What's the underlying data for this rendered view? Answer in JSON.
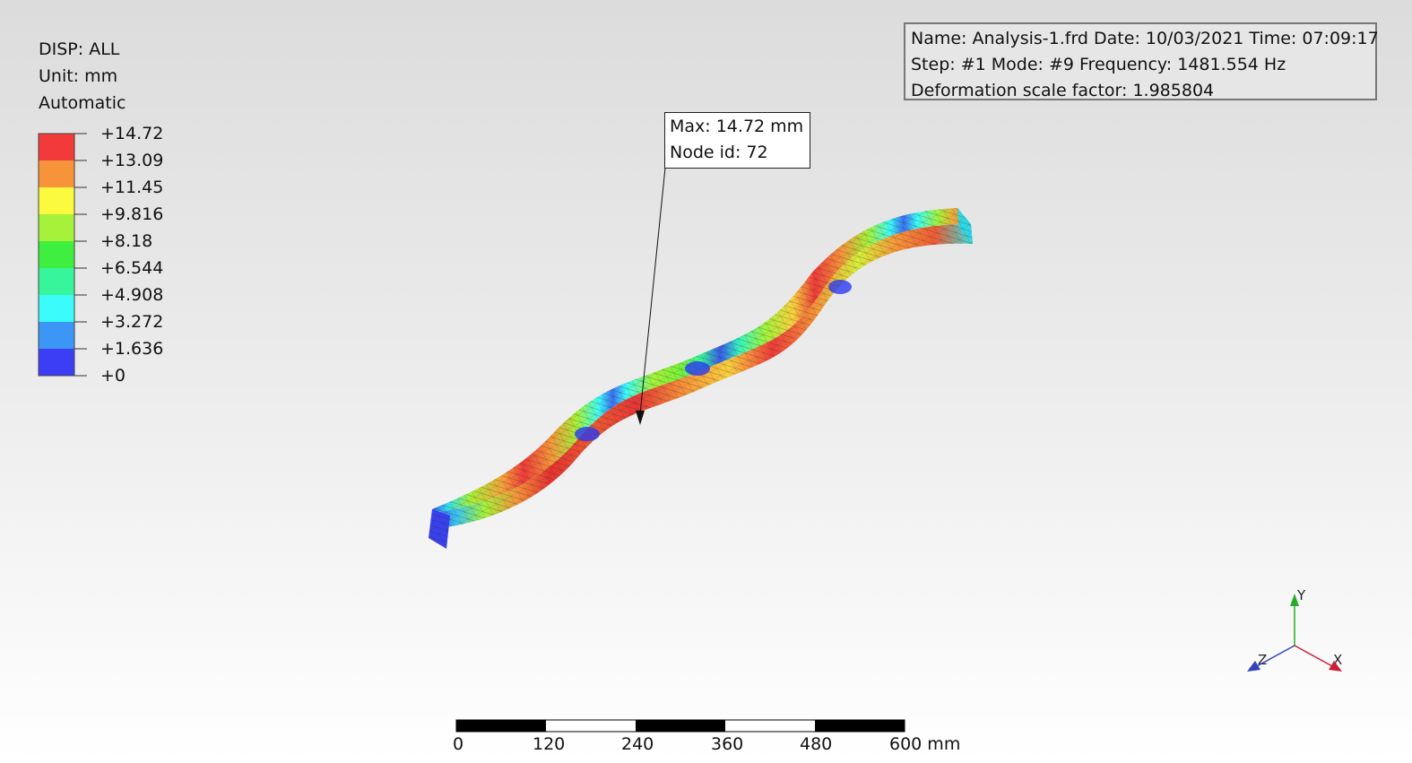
{
  "legend": {
    "title": "DISP: ALL",
    "unit": "Unit: mm",
    "mode": "Automatic",
    "labels": [
      "+14.72",
      "+13.09",
      "+11.45",
      "+9.816",
      "+8.18",
      "+6.544",
      "+4.908",
      "+3.272",
      "+1.636",
      "+0"
    ],
    "colors": [
      "#f23a3a",
      "#f7943a",
      "#fcfa3e",
      "#a6f23a",
      "#3fef3f",
      "#37f59a",
      "#3cfbfb",
      "#3b96f5",
      "#3c3ef5"
    ]
  },
  "info": {
    "line1": "Name: Analysis-1.frd   Date: 10/03/2021   Time: 07:09:17",
    "line2": "Step: #1   Mode: #9   Frequency: 1481.554 Hz",
    "line3": "Deformation scale factor: 1.985804"
  },
  "max_annotation": {
    "line1": "Max: 14.72 mm",
    "line2": "Node id: 72"
  },
  "scale_bar": {
    "ticks": [
      "0",
      "120",
      "240",
      "360",
      "480",
      "600 mm"
    ]
  },
  "axes": {
    "x": "X",
    "y": "Y",
    "z": "Z",
    "colors": {
      "x": "#c8203a",
      "y": "#2aaa2a",
      "z": "#3344bb"
    }
  }
}
